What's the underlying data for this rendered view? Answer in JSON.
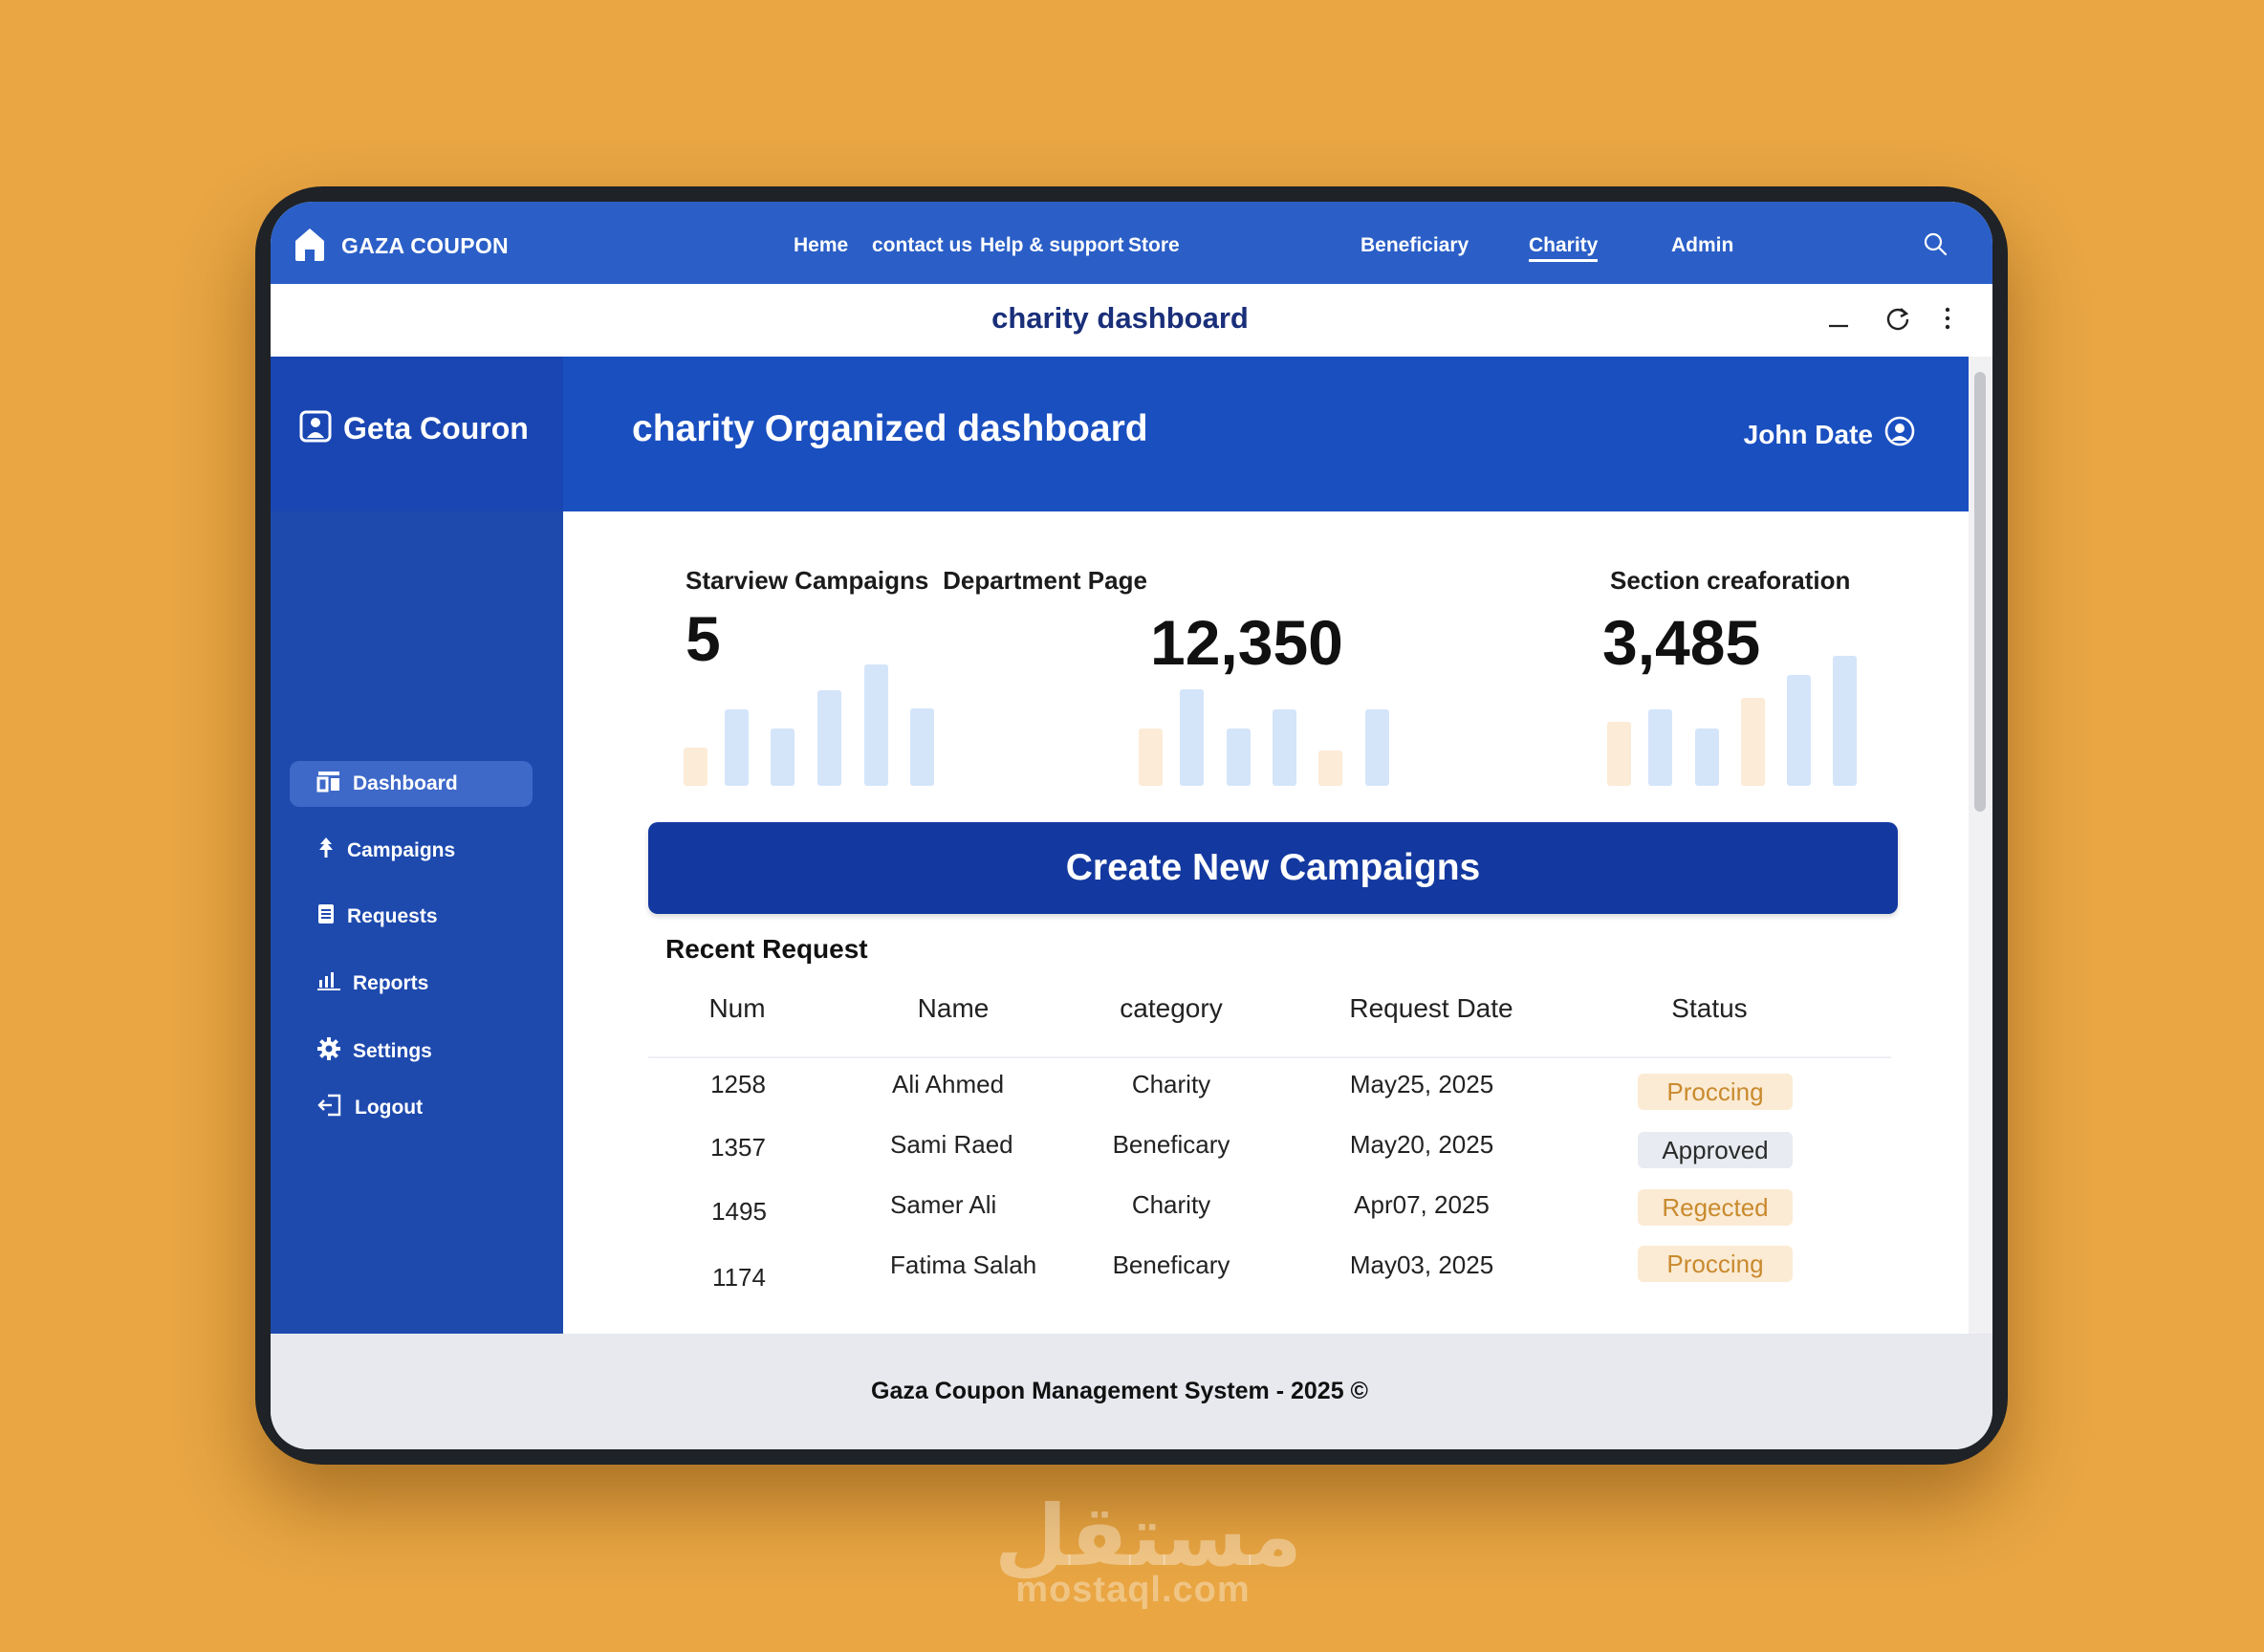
{
  "topnav": {
    "brand": "GAZA COUPON",
    "links": [
      "Heme",
      "contact us",
      "Help & support",
      "Store",
      "Beneficiary",
      "Charity",
      "Admin"
    ],
    "active": "Charity"
  },
  "titlebar": {
    "title": "charity dashboard"
  },
  "sidebar": {
    "brand": "Geta Couron",
    "items": [
      {
        "label": "Dashboard",
        "icon": "dashboard-icon"
      },
      {
        "label": "Campaigns",
        "icon": "tree-icon"
      },
      {
        "label": "Requests",
        "icon": "document-icon"
      },
      {
        "label": "Reports",
        "icon": "bar-chart-icon"
      },
      {
        "label": "Settings",
        "icon": "gear-icon"
      },
      {
        "label": "Logout",
        "icon": "logout-icon"
      }
    ]
  },
  "header": {
    "title": "charity Organized dashboard",
    "user": "John Date"
  },
  "stats": [
    {
      "label": "Starview Campaigns",
      "value": "5"
    },
    {
      "label": "Department Page",
      "value": "12,350"
    },
    {
      "label": "Section creaforation",
      "value": "3,485"
    }
  ],
  "cta": {
    "label": "Create New Campaigns"
  },
  "recent": {
    "title": "Recent Request",
    "columns": [
      "Num",
      "Name",
      "category",
      "Request Date",
      "Status"
    ],
    "rows": [
      {
        "num": "1258",
        "name": "Ali Ahmed",
        "category": "Charity",
        "date": "May25, 2025",
        "status": "Proccing"
      },
      {
        "num": "1357",
        "name": "Sami Raed",
        "category": "Beneficary",
        "date": "May20, 2025",
        "status": "Approved"
      },
      {
        "num": "1495",
        "name": "Samer Ali",
        "category": "Charity",
        "date": "Apr07, 2025",
        "status": "Regected"
      },
      {
        "num": "1174",
        "name": "Fatima Salah",
        "category": "Beneficary",
        "date": "May03, 2025",
        "status": "Proccing"
      }
    ]
  },
  "footer": {
    "text": "Gaza Coupon Management System - 2025 ©"
  },
  "watermark": {
    "arabic": "مستقل",
    "latin": "mostaql.com"
  },
  "colors": {
    "nav": "#2B5FC7",
    "sidebar": "#1E4AAE",
    "header": "#1A4FC0",
    "cta": "#1339A0",
    "background": "#E9A643",
    "badge_warn": "#FBEBD4",
    "badge_ok": "#E8EBF1"
  }
}
